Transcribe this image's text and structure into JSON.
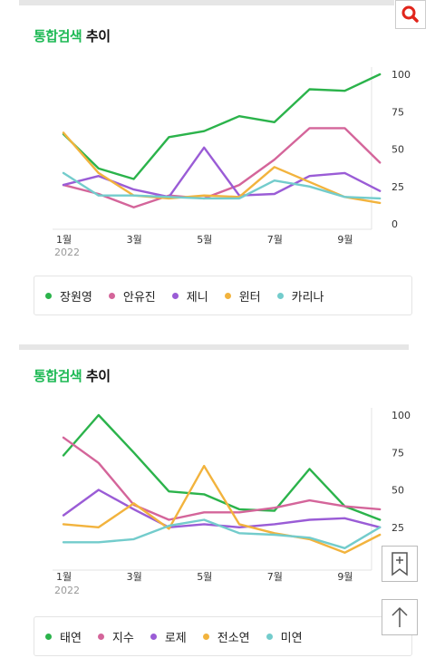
{
  "colors": {
    "accent": "#1db954",
    "green": "#2bb34b",
    "pink": "#d4659a",
    "purple": "#9a5cd6",
    "orange": "#f2b33d",
    "teal": "#73cccc"
  },
  "icons": {
    "search": "search-icon",
    "bookmark": "bookmark-plus-icon",
    "top": "arrow-up-icon"
  },
  "sections": [
    {
      "title_accent": "통합검색",
      "title_rest": " 추이"
    },
    {
      "title_accent": "통합검색",
      "title_rest": " 추이"
    }
  ],
  "chart_data": [
    {
      "type": "line",
      "title": "통합검색 추이",
      "x": [
        1,
        2,
        3,
        4,
        5,
        6,
        7,
        8,
        9,
        10
      ],
      "x_tick_labels": [
        "1월",
        "3월",
        "5월",
        "7월",
        "9월"
      ],
      "x_tick_values": [
        1,
        3,
        5,
        7,
        9
      ],
      "year_label": "2022",
      "ylim": [
        0,
        100
      ],
      "y_ticks": [
        "100",
        "75",
        "50",
        "25",
        "0"
      ],
      "y_tick_values": [
        100,
        75,
        50,
        25,
        0
      ],
      "grid": false,
      "legend_position": "bottom",
      "series": [
        {
          "name": "장원영",
          "color": "#2bb34b",
          "values": [
            60,
            37,
            30,
            58,
            62,
            72,
            68,
            90,
            89,
            100
          ]
        },
        {
          "name": "안유진",
          "color": "#d4659a",
          "values": [
            26,
            20,
            11,
            19,
            17,
            26,
            43,
            64,
            64,
            41
          ]
        },
        {
          "name": "제니",
          "color": "#9a5cd6",
          "values": [
            26,
            32,
            23,
            18,
            51,
            19,
            20,
            32,
            34,
            22
          ]
        },
        {
          "name": "윈터",
          "color": "#f2b33d",
          "values": [
            61,
            34,
            19,
            17,
            19,
            18,
            38,
            28,
            18,
            14
          ]
        },
        {
          "name": "카리나",
          "color": "#73cccc",
          "values": [
            34,
            19,
            19,
            18,
            17,
            17,
            29,
            25,
            18,
            17
          ]
        }
      ]
    },
    {
      "type": "line",
      "title": "통합검색 추이",
      "x": [
        1,
        2,
        3,
        4,
        5,
        6,
        7,
        8,
        9,
        10
      ],
      "x_tick_labels": [
        "1월",
        "3월",
        "5월",
        "7월",
        "9월"
      ],
      "x_tick_values": [
        1,
        3,
        5,
        7,
        9
      ],
      "year_label": "2022",
      "ylim": [
        0,
        100
      ],
      "y_ticks": [
        "100",
        "75",
        "50",
        "25"
      ],
      "y_tick_values": [
        100,
        75,
        50,
        25
      ],
      "grid": false,
      "legend_position": "bottom",
      "series": [
        {
          "name": "태연",
          "color": "#2bb34b",
          "values": [
            73,
            100,
            75,
            49,
            47,
            37,
            36,
            64,
            39,
            30
          ]
        },
        {
          "name": "지수",
          "color": "#d4659a",
          "values": [
            85,
            68,
            40,
            30,
            35,
            35,
            38,
            43,
            39,
            37
          ]
        },
        {
          "name": "로제",
          "color": "#9a5cd6",
          "values": [
            33,
            50,
            37,
            25,
            27,
            25,
            27,
            30,
            31,
            25
          ]
        },
        {
          "name": "전소연",
          "color": "#f2b33d",
          "values": [
            27,
            25,
            41,
            24,
            66,
            27,
            21,
            17,
            8,
            20
          ]
        },
        {
          "name": "미연",
          "color": "#73cccc",
          "values": [
            15,
            15,
            17,
            26,
            30,
            21,
            20,
            18,
            11,
            25
          ]
        }
      ]
    }
  ]
}
